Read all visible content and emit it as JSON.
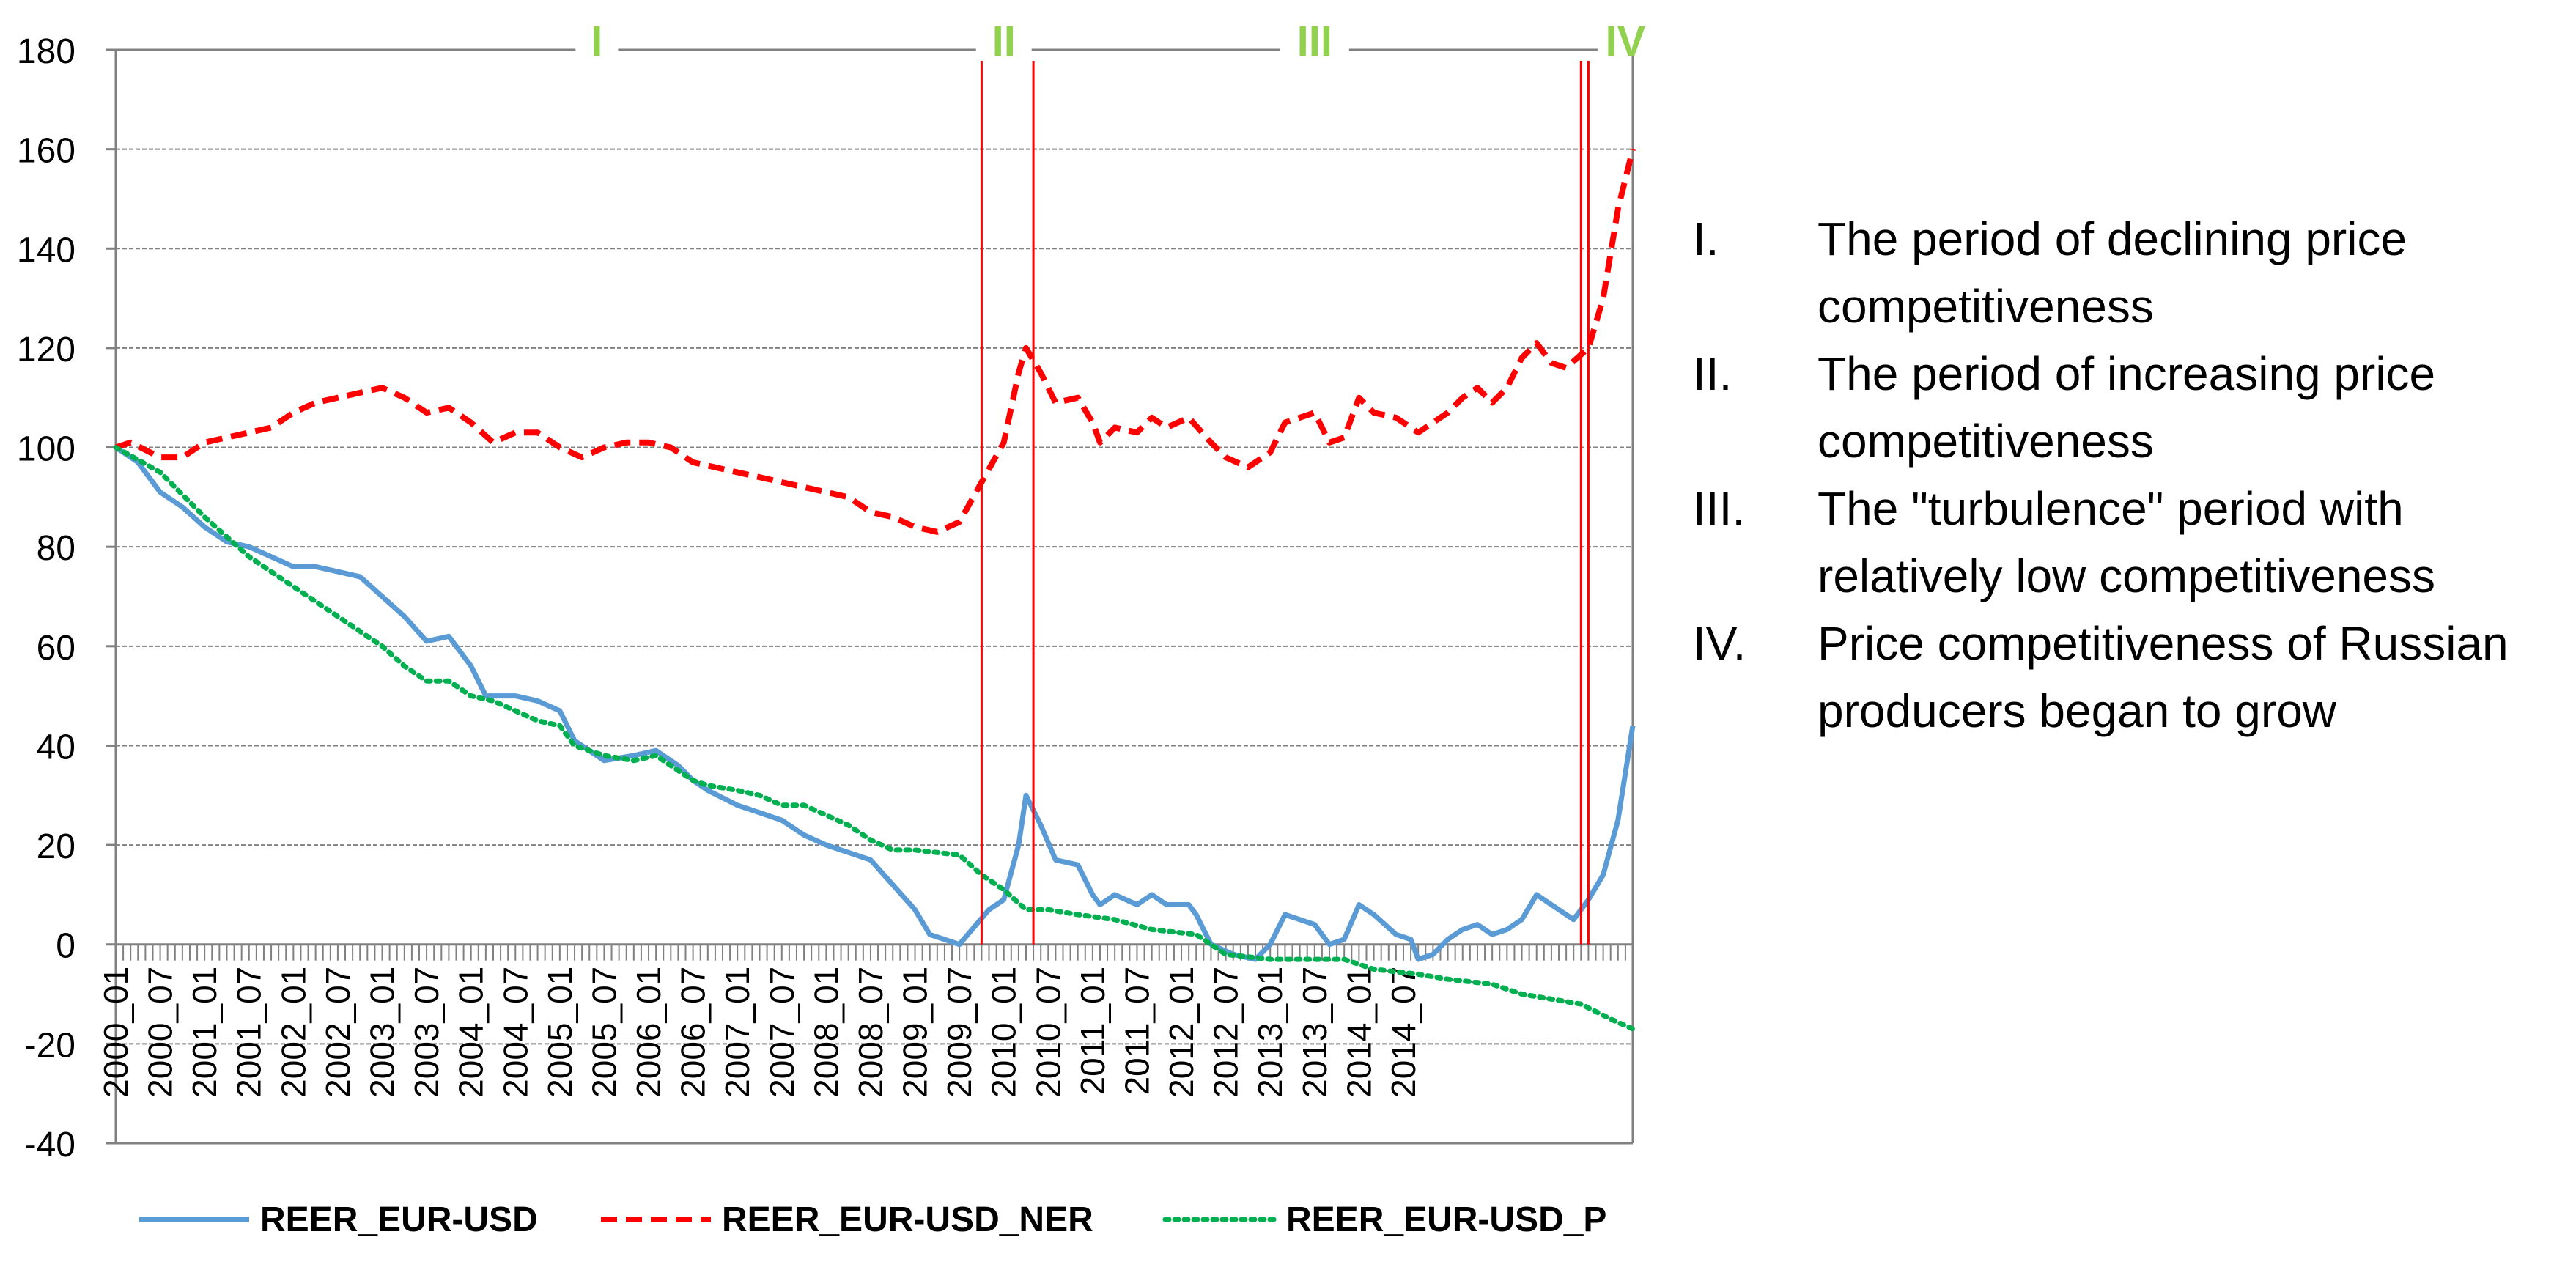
{
  "chart_data": {
    "type": "line",
    "title": "",
    "xlabel": "",
    "ylabel": "",
    "ylim": [
      -40,
      180
    ],
    "yticks": [
      -40,
      -20,
      0,
      20,
      40,
      60,
      80,
      100,
      120,
      140,
      160,
      180
    ],
    "x_tick_labels": [
      "2000_01",
      "2000_07",
      "2001_01",
      "2001_07",
      "2002_01",
      "2002_07",
      "2003_01",
      "2003_07",
      "2004_01",
      "2004_07",
      "2005_01",
      "2005_07",
      "2006_01",
      "2006_07",
      "2007_01",
      "2007_07",
      "2008_01",
      "2008_07",
      "2009_01",
      "2009_07",
      "2010_01",
      "2010_07",
      "2011_01",
      "2011_07",
      "2012_01",
      "2012_07",
      "2013_01",
      "2013_07",
      "2014_01",
      "2014_07"
    ],
    "x_range_months": [
      0,
      179
    ],
    "grid": "horizontal",
    "legend_position": "bottom",
    "series": [
      {
        "name": "REER_EUR-USD",
        "color": "#5B9BD5",
        "dash": "solid",
        "points": [
          [
            0,
            100
          ],
          [
            3,
            97
          ],
          [
            6,
            91
          ],
          [
            9,
            88
          ],
          [
            12,
            84
          ],
          [
            15,
            81
          ],
          [
            18,
            80
          ],
          [
            21,
            78
          ],
          [
            24,
            76
          ],
          [
            27,
            76
          ],
          [
            30,
            75
          ],
          [
            33,
            74
          ],
          [
            36,
            70
          ],
          [
            39,
            66
          ],
          [
            42,
            61
          ],
          [
            45,
            62
          ],
          [
            48,
            56
          ],
          [
            50,
            50
          ],
          [
            54,
            50
          ],
          [
            57,
            49
          ],
          [
            60,
            47
          ],
          [
            62,
            41
          ],
          [
            66,
            37
          ],
          [
            70,
            38
          ],
          [
            73,
            39
          ],
          [
            76,
            36
          ],
          [
            78,
            33
          ],
          [
            80,
            31
          ],
          [
            84,
            28
          ],
          [
            90,
            25
          ],
          [
            93,
            22
          ],
          [
            96,
            20
          ],
          [
            102,
            17
          ],
          [
            105,
            12
          ],
          [
            108,
            7
          ],
          [
            110,
            2
          ],
          [
            114,
            0
          ],
          [
            118,
            7
          ],
          [
            120,
            9
          ],
          [
            122,
            20
          ],
          [
            123,
            30
          ],
          [
            125,
            24
          ],
          [
            127,
            17
          ],
          [
            130,
            16
          ],
          [
            132,
            10
          ],
          [
            133,
            8
          ],
          [
            135,
            10
          ],
          [
            138,
            8
          ],
          [
            140,
            10
          ],
          [
            142,
            8
          ],
          [
            145,
            8
          ],
          [
            146,
            6
          ],
          [
            148,
            0
          ],
          [
            151,
            -2
          ],
          [
            154,
            -3
          ],
          [
            156,
            0
          ],
          [
            158,
            6
          ],
          [
            160,
            5
          ],
          [
            162,
            4
          ],
          [
            164,
            0
          ],
          [
            166,
            1
          ],
          [
            168,
            8
          ],
          [
            170,
            6
          ],
          [
            173,
            2
          ],
          [
            175,
            1
          ],
          [
            176,
            -3
          ],
          [
            178,
            -2
          ],
          [
            180,
            1
          ],
          [
            182,
            3
          ],
          [
            184,
            4
          ],
          [
            186,
            2
          ],
          [
            188,
            3
          ],
          [
            190,
            5
          ],
          [
            192,
            10
          ],
          [
            194,
            8
          ],
          [
            196,
            6
          ],
          [
            197,
            5
          ],
          [
            199,
            9
          ],
          [
            201,
            14
          ],
          [
            203,
            25
          ],
          [
            205,
            44
          ]
        ]
      },
      {
        "name": "REER_EUR-USD_NER",
        "color": "#FF0000",
        "dash": "dashed",
        "points": [
          [
            0,
            100
          ],
          [
            2,
            101
          ],
          [
            6,
            98
          ],
          [
            9,
            98
          ],
          [
            12,
            101
          ],
          [
            18,
            103
          ],
          [
            21,
            104
          ],
          [
            24,
            107
          ],
          [
            27,
            109
          ],
          [
            30,
            110
          ],
          [
            33,
            111
          ],
          [
            36,
            112
          ],
          [
            39,
            110
          ],
          [
            42,
            107
          ],
          [
            45,
            108
          ],
          [
            48,
            105
          ],
          [
            51,
            101
          ],
          [
            54,
            103
          ],
          [
            57,
            103
          ],
          [
            60,
            100
          ],
          [
            63,
            98
          ],
          [
            66,
            100
          ],
          [
            69,
            101
          ],
          [
            72,
            101
          ],
          [
            75,
            100
          ],
          [
            78,
            97
          ],
          [
            81,
            96
          ],
          [
            84,
            95
          ],
          [
            87,
            94
          ],
          [
            90,
            93
          ],
          [
            93,
            92
          ],
          [
            96,
            91
          ],
          [
            99,
            90
          ],
          [
            102,
            87
          ],
          [
            105,
            86
          ],
          [
            108,
            84
          ],
          [
            111,
            83
          ],
          [
            114,
            85
          ],
          [
            117,
            93
          ],
          [
            120,
            101
          ],
          [
            122,
            115
          ],
          [
            123,
            120
          ],
          [
            125,
            115
          ],
          [
            127,
            109
          ],
          [
            130,
            110
          ],
          [
            132,
            105
          ],
          [
            133,
            101
          ],
          [
            135,
            104
          ],
          [
            138,
            103
          ],
          [
            140,
            106
          ],
          [
            142,
            104
          ],
          [
            145,
            106
          ],
          [
            148,
            101
          ],
          [
            150,
            98
          ],
          [
            153,
            96
          ],
          [
            156,
            99
          ],
          [
            158,
            105
          ],
          [
            160,
            106
          ],
          [
            162,
            107
          ],
          [
            164,
            101
          ],
          [
            166,
            102
          ],
          [
            168,
            110
          ],
          [
            170,
            107
          ],
          [
            173,
            106
          ],
          [
            175,
            104
          ],
          [
            176,
            103
          ],
          [
            178,
            105
          ],
          [
            180,
            107
          ],
          [
            182,
            110
          ],
          [
            184,
            112
          ],
          [
            186,
            109
          ],
          [
            188,
            112
          ],
          [
            190,
            118
          ],
          [
            192,
            121
          ],
          [
            194,
            117
          ],
          [
            196,
            116
          ],
          [
            199,
            120
          ],
          [
            201,
            130
          ],
          [
            203,
            148
          ],
          [
            205,
            160
          ]
        ]
      },
      {
        "name": "REER_EUR-USD_P",
        "color": "#00B050",
        "dash": "dotted",
        "points": [
          [
            0,
            100
          ],
          [
            6,
            95
          ],
          [
            12,
            86
          ],
          [
            18,
            78
          ],
          [
            24,
            72
          ],
          [
            27,
            69
          ],
          [
            30,
            66
          ],
          [
            33,
            63
          ],
          [
            36,
            60
          ],
          [
            39,
            56
          ],
          [
            42,
            53
          ],
          [
            45,
            53
          ],
          [
            48,
            50
          ],
          [
            51,
            49
          ],
          [
            54,
            47
          ],
          [
            57,
            45
          ],
          [
            60,
            44
          ],
          [
            62,
            40
          ],
          [
            66,
            38
          ],
          [
            70,
            37
          ],
          [
            73,
            38
          ],
          [
            76,
            35
          ],
          [
            78,
            33
          ],
          [
            80,
            32
          ],
          [
            84,
            31
          ],
          [
            87,
            30
          ],
          [
            90,
            28
          ],
          [
            93,
            28
          ],
          [
            96,
            26
          ],
          [
            99,
            24
          ],
          [
            102,
            21
          ],
          [
            105,
            19
          ],
          [
            108,
            19
          ],
          [
            114,
            18
          ],
          [
            117,
            14
          ],
          [
            120,
            11
          ],
          [
            123,
            7
          ],
          [
            126,
            7
          ],
          [
            130,
            6
          ],
          [
            135,
            5
          ],
          [
            140,
            3
          ],
          [
            146,
            2
          ],
          [
            150,
            -2
          ],
          [
            156,
            -3
          ],
          [
            160,
            -3
          ],
          [
            166,
            -3
          ],
          [
            170,
            -5
          ],
          [
            176,
            -6
          ],
          [
            180,
            -7
          ],
          [
            186,
            -8
          ],
          [
            190,
            -10
          ],
          [
            194,
            -11
          ],
          [
            198,
            -12
          ],
          [
            202,
            -15
          ],
          [
            205,
            -17
          ]
        ]
      }
    ],
    "vertical_markers_months": [
      117,
      124,
      198,
      199
    ],
    "periods": [
      {
        "label": "I",
        "center_month": 65
      },
      {
        "label": "II",
        "center_month": 120
      },
      {
        "label": "III",
        "center_month": 162
      },
      {
        "label": "IV",
        "center_month": 204
      }
    ],
    "marker_color": "#FF0000",
    "period_label_color": "#92D050",
    "axis_color": "#000000",
    "grid_color": "#808080"
  },
  "annotations": [
    {
      "num": "I.",
      "text": "The period of declining price competitiveness"
    },
    {
      "num": "II.",
      "text": "The period of increasing price competitiveness"
    },
    {
      "num": "III.",
      "text": "The \"turbulence\" period with relatively low competitiveness"
    },
    {
      "num": "IV.",
      "text": "Price competitiveness of Russian producers began to grow"
    }
  ]
}
